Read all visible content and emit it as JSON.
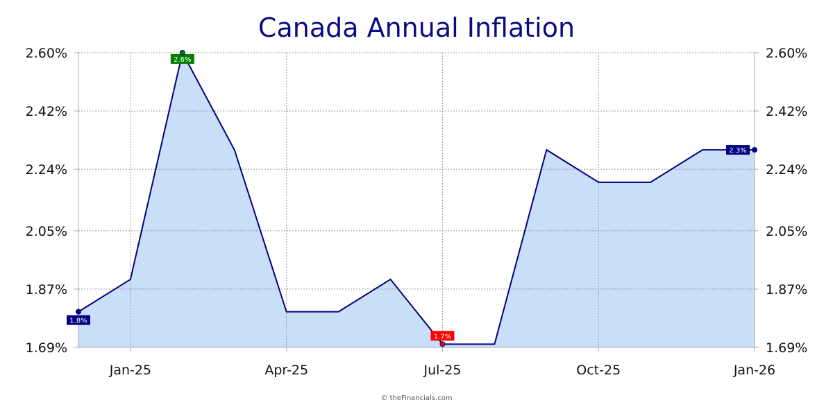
{
  "chart_data": {
    "type": "area",
    "title": "Canada Annual Inflation",
    "x": [
      "2024-12",
      "2025-01",
      "2025-02",
      "2025-03",
      "2025-04",
      "2025-05",
      "2025-06",
      "2025-07",
      "2025-08",
      "2025-09",
      "2025-10",
      "2025-11",
      "2025-12",
      "2026-01"
    ],
    "values": [
      1.8,
      1.9,
      2.6,
      2.3,
      1.8,
      1.8,
      1.9,
      1.7,
      1.7,
      2.3,
      2.2,
      2.2,
      2.3,
      2.3
    ],
    "x_tick_labels": [
      "Jan-25",
      "Apr-25",
      "Jul-25",
      "Oct-25",
      "Jan-26"
    ],
    "x_tick_dates": [
      "2025-01",
      "2025-04",
      "2025-07",
      "2025-10",
      "2026-01"
    ],
    "y_tick_labels": [
      "1.69%",
      "1.87%",
      "2.05%",
      "2.24%",
      "2.42%",
      "2.60%"
    ],
    "y_tick_values": [
      1.69,
      1.87,
      2.05,
      2.24,
      2.42,
      2.6
    ],
    "ylim": [
      1.69,
      2.6
    ],
    "grid": true,
    "annotations": [
      {
        "x": "2024-12",
        "label": "1.8%",
        "color": "#000080"
      },
      {
        "x": "2025-02",
        "label": "2.6%",
        "color": "#008000"
      },
      {
        "x": "2025-07",
        "label": "1.7%",
        "color": "#ff0000"
      },
      {
        "x": "2026-01",
        "label": "2.3%",
        "color": "#000080"
      }
    ],
    "line_color": "#000080",
    "fill_color": "#c9def7"
  },
  "credit": "© theFinancials.com"
}
